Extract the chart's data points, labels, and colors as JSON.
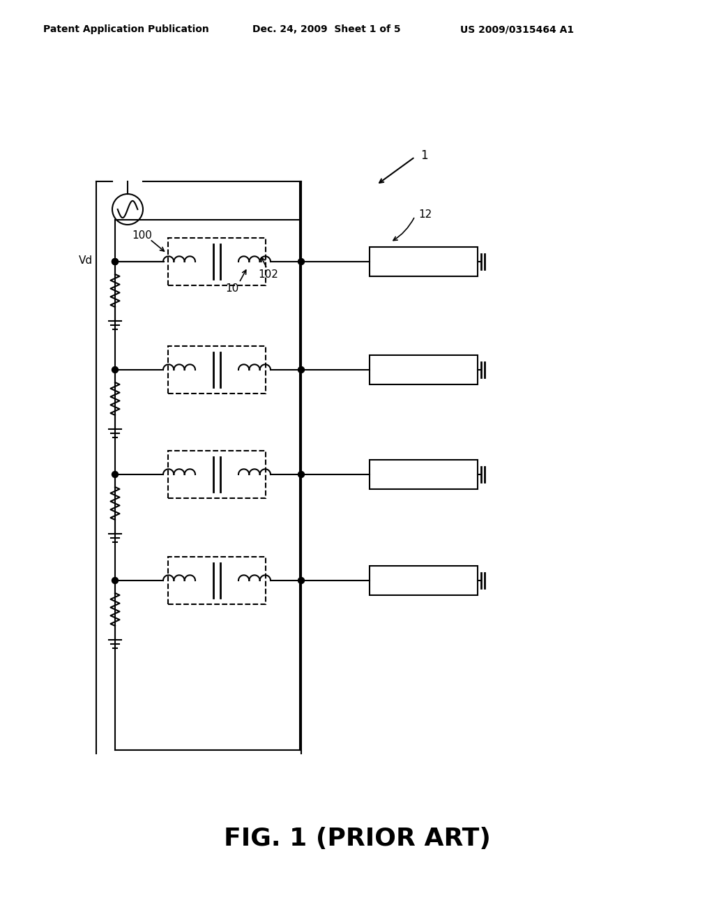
{
  "bg_color": "#ffffff",
  "header_left": "Patent Application Publication",
  "header_mid": "Dec. 24, 2009  Sheet 1 of 5",
  "header_right": "US 2009/0315464 A1",
  "footer_label": "FIG. 1 (PRIOR ART)",
  "label_1": "1",
  "label_12": "12",
  "label_100": "100",
  "label_102": "102",
  "label_10": "10",
  "label_Vd": "Vd"
}
